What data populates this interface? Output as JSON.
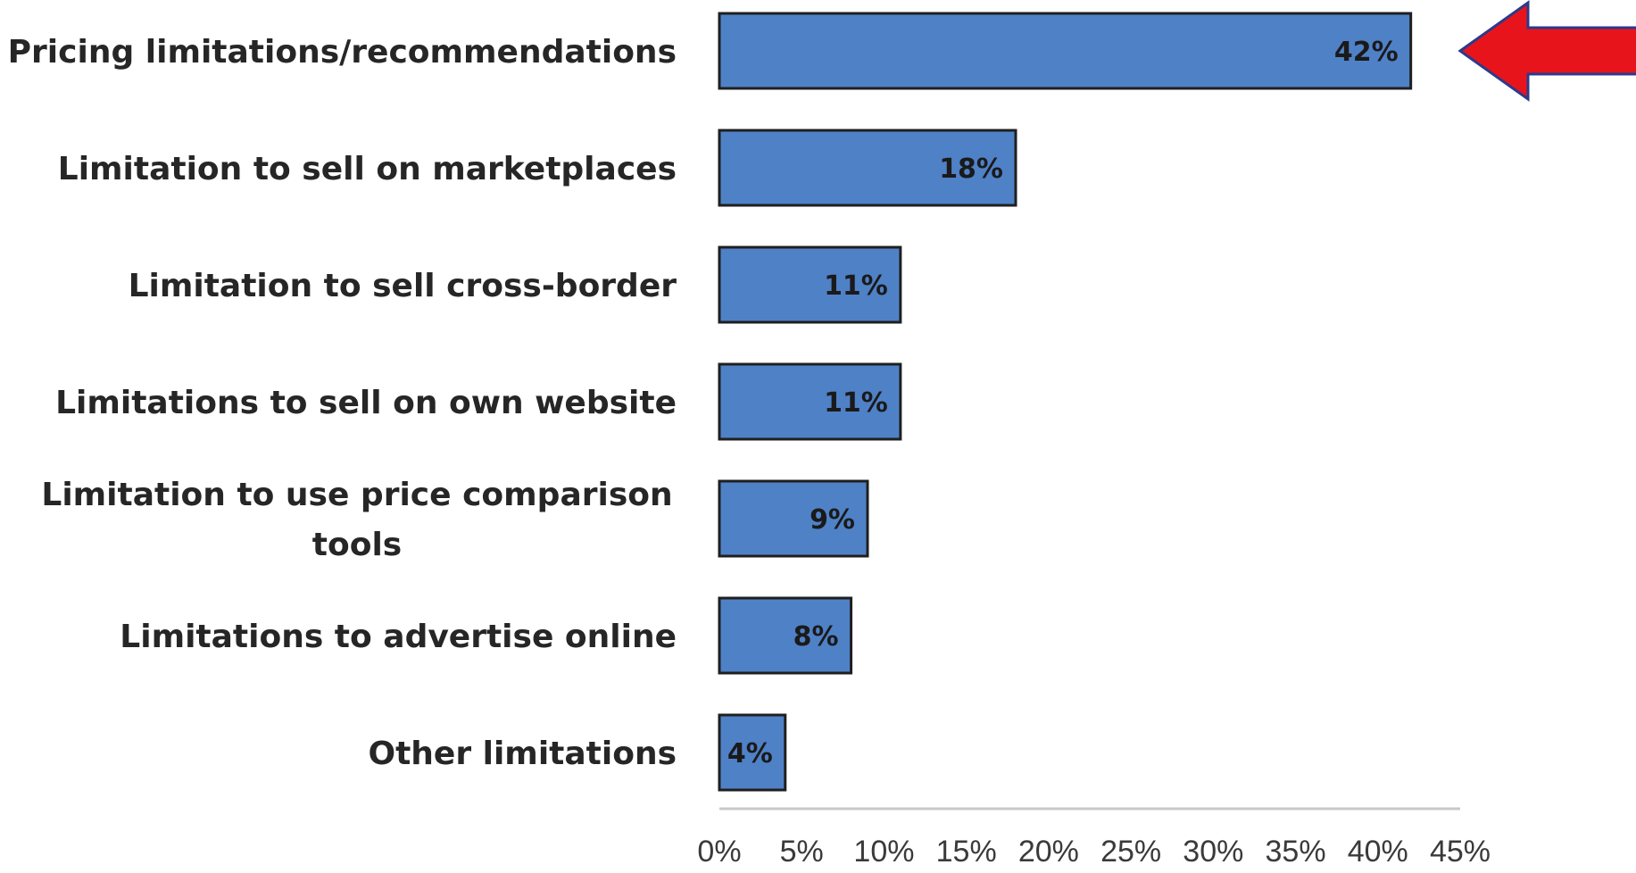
{
  "chart_data": {
    "type": "bar",
    "orientation": "horizontal",
    "categories": [
      [
        "Pricing limitations/recommendations"
      ],
      [
        "Limitation to sell on marketplaces"
      ],
      [
        "Limitation  to sell cross-border"
      ],
      [
        "Limitations to sell on own website"
      ],
      [
        "Limitation to use price comparison",
        "tools"
      ],
      [
        "Limitations to advertise online"
      ],
      [
        "Other limitations"
      ]
    ],
    "values": [
      42,
      18,
      11,
      11,
      9,
      8,
      4
    ],
    "data_labels": [
      "42%",
      "18%",
      "11%",
      "11%",
      "9%",
      "8%",
      "4%"
    ],
    "title": "",
    "xlabel": "",
    "ylabel": "",
    "xlim": [
      0,
      45
    ],
    "x_ticks": [
      0,
      5,
      10,
      15,
      20,
      25,
      30,
      35,
      40,
      45
    ],
    "x_tick_labels": [
      "0%",
      "5%",
      "10%",
      "15%",
      "20%",
      "25%",
      "30%",
      "35%",
      "40%",
      "45%"
    ],
    "grid": false,
    "legend": "none",
    "bar_color": "#4f81c7",
    "bar_outline_color": "#1f1f1f",
    "annotation": {
      "shape": "arrow-left",
      "color": "#e8141c",
      "outline_color": "#2b3a8c",
      "points_to_category_index": 0
    }
  }
}
